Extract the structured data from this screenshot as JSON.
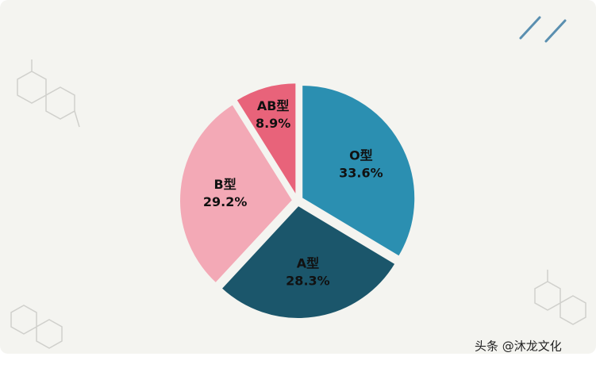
{
  "chart_data": {
    "type": "pie",
    "categories": [
      "O型",
      "A型",
      "B型",
      "AB型"
    ],
    "values": [
      33.6,
      28.3,
      29.2,
      8.9
    ],
    "value_labels": [
      "33.6%",
      "28.3%",
      "29.2%",
      "8.9%"
    ],
    "colors": [
      "#2b8fb1",
      "#1b566b",
      "#f3a9b6",
      "#e8637a"
    ]
  },
  "watermark": "头条 @沐龙文化"
}
